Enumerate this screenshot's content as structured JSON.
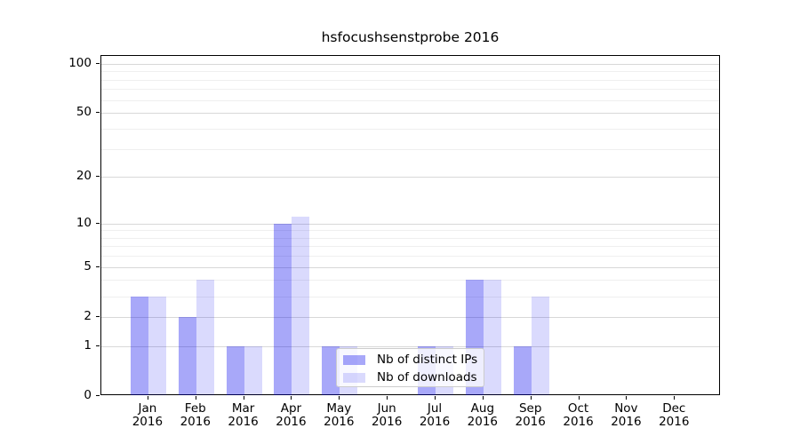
{
  "title": "hsfocushsenstprobe 2016",
  "chart_data": {
    "type": "bar",
    "title": "hsfocushsenstprobe 2016",
    "categories": [
      "Jan",
      "Feb",
      "Mar",
      "Apr",
      "May",
      "Jun",
      "Jul",
      "Aug",
      "Sep",
      "Oct",
      "Nov",
      "Dec"
    ],
    "x_tick_year": "2016",
    "series": [
      {
        "name": "Nb of distinct IPs",
        "color": "rgba(0,0,238,0.34)",
        "values": [
          3,
          2,
          1,
          10,
          1,
          0,
          1,
          4,
          1,
          0,
          0,
          0
        ]
      },
      {
        "name": "Nb of downloads",
        "color": "rgba(0,0,238,0.145)",
        "values": [
          3,
          4,
          1,
          11,
          1,
          0,
          1,
          4,
          3,
          0,
          0,
          0
        ]
      }
    ],
    "y_scale": "log1p",
    "y_ticks": [
      0,
      1,
      2,
      5,
      10,
      20,
      50,
      100
    ],
    "y_minor_gridlines": [
      3,
      4,
      6,
      7,
      8,
      9,
      30,
      40,
      60,
      70,
      80,
      90
    ],
    "ylim": [
      0,
      111.5
    ],
    "grid": true,
    "grid_major_color": "#d8d8d8",
    "grid_minor_color": "#efefef",
    "legend_position": "lower center",
    "xlabel": "",
    "ylabel": ""
  }
}
